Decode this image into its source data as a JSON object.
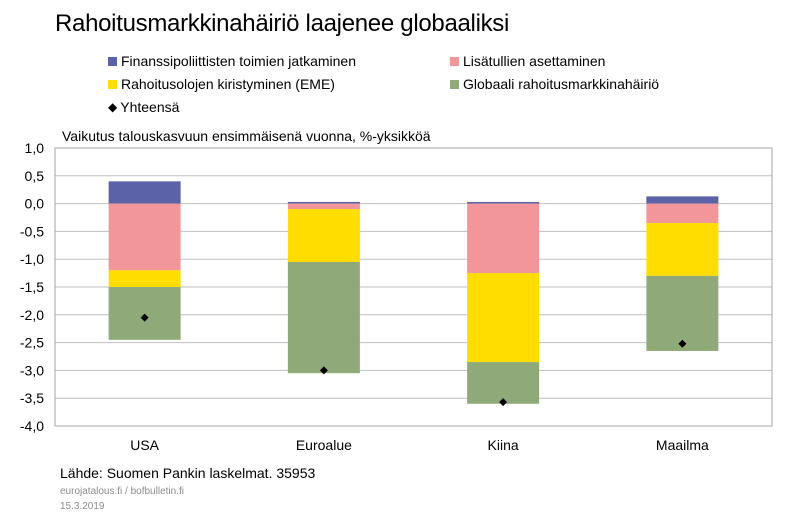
{
  "title": "Rahoitusmarkkinahäiriö laajenee globaaliksi",
  "subtitle": "Vaikutus talouskasvuun ensimmäisenä vuonna, %-yksikköä",
  "source": "Lähde: Suomen Pankin laskelmat. 35953",
  "footer_site": "eurojatalous.fi / bofbulletin.fi",
  "footer_date": "15.3.2019",
  "colors": {
    "financial_policy": "#5b62a8",
    "tariffs": "#f29699",
    "eme_tightening": "#ffdd00",
    "global_disruption": "#8faa78",
    "total": "#000000",
    "gridline": "#bfbfbf"
  },
  "chart_data": {
    "type": "bar",
    "stacked": true,
    "title": "Rahoitusmarkkinahäiriö laajenee globaaliksi",
    "ylabel": "Vaikutus talouskasvuun ensimmäisenä vuonna, %-yksikköä",
    "xlabel": "",
    "categories": [
      "USA",
      "Euroalue",
      "Kiina",
      "Maailma"
    ],
    "ylim": [
      -4.0,
      1.0
    ],
    "yticks": [
      "1,0",
      "0,5",
      "0,0",
      "-0,5",
      "-1,0",
      "-1,5",
      "-2,0",
      "-2,5",
      "-3,0",
      "-3,5",
      "-4,0"
    ],
    "ytick_values": [
      1.0,
      0.5,
      0.0,
      -0.5,
      -1.0,
      -1.5,
      -2.0,
      -2.5,
      -3.0,
      -3.5,
      -4.0
    ],
    "grid": true,
    "legend_position": "top",
    "series": [
      {
        "name": "Finanssipoliittisten toimien jatkaminen",
        "values": [
          0.4,
          0.03,
          0.03,
          0.13
        ]
      },
      {
        "name": "Lisätullien asettaminen",
        "values": [
          -1.2,
          -0.1,
          -1.25,
          -0.35
        ]
      },
      {
        "name": "Rahoitusolojen kiristyminen (EME)",
        "values": [
          -0.3,
          -0.95,
          -1.6,
          -0.95
        ]
      },
      {
        "name": "Globaali rahoitusmarkkinahäiriö",
        "values": [
          -0.95,
          -2.0,
          -0.75,
          -1.35
        ]
      }
    ],
    "total": {
      "name": "Yhteensä",
      "values": [
        -2.05,
        -3.0,
        -3.57,
        -2.52
      ]
    }
  }
}
